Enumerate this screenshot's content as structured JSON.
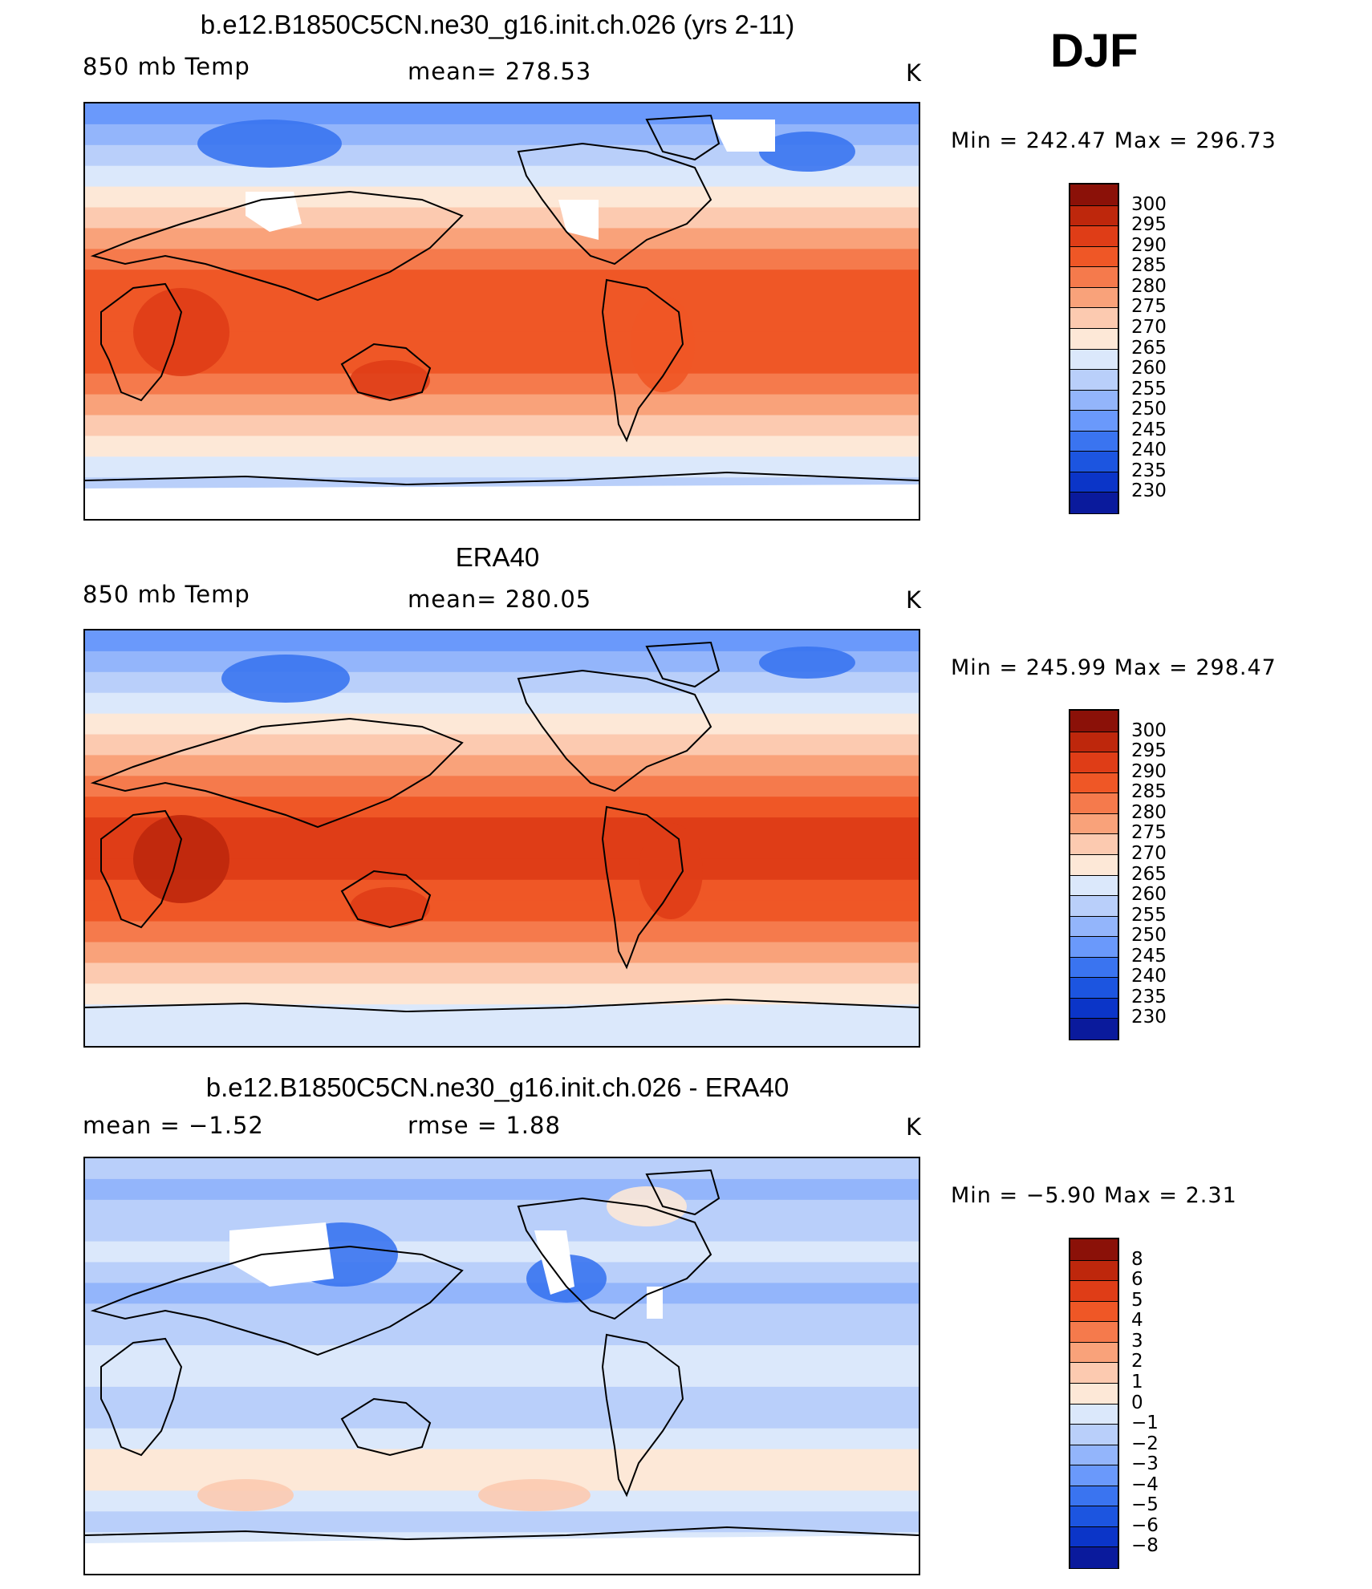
{
  "season": "DJF",
  "colors": {
    "abs": [
      "#08006b",
      "#0a1a9c",
      "#0b35c8",
      "#1c55e0",
      "#3a74f0",
      "#6a99fb",
      "#93b5fb",
      "#b9cffa",
      "#dbe8fb",
      "#fde8d7",
      "#fccab0",
      "#f9a27a",
      "#f57a4c",
      "#ef5726",
      "#df3d17",
      "#be270c",
      "#8b1108"
    ],
    "diff": [
      "#08006b",
      "#0a1a9c",
      "#0b35c8",
      "#1c55e0",
      "#3a74f0",
      "#6a99fb",
      "#93b5fb",
      "#b9cffa",
      "#dbe8fb",
      "#fde8d7",
      "#fccab0",
      "#f9a27a",
      "#f57a4c",
      "#ef5726",
      "#df3d17",
      "#be270c",
      "#8b1108"
    ],
    "missing": "#ffffff",
    "coast": "#000000"
  },
  "panels": [
    {
      "id": "model",
      "title": "b.e12.B1850C5CN.ne30_g16.init.ch.026 (yrs 2-11)",
      "left_label": "850 mb Temp",
      "center_label": "mean=  278.53",
      "units": "K",
      "minmax": "Min  =  242.47  Max  =  296.73"
    },
    {
      "id": "obs",
      "title": "ERA40",
      "left_label": "850 mb Temp",
      "center_label": "mean=  280.05",
      "units": "K",
      "minmax": "Min  =  245.99  Max  =  298.47"
    },
    {
      "id": "diff",
      "title": "b.e12.B1850C5CN.ne30_g16.init.ch.026 - ERA40",
      "left_label": "mean  =    −1.52",
      "center_label": "rmse  =     1.88",
      "units": "K",
      "minmax": "Min  =    −5.90  Max  =     2.31"
    }
  ],
  "chart_data": [
    {
      "type": "heatmap",
      "title": "b.e12.B1850C5CN.ne30_g16.init.ch.026 (yrs 2-11)",
      "variable": "850 mb Temp",
      "units": "K",
      "season": "DJF",
      "mean": 278.53,
      "min": 242.47,
      "max": 296.73,
      "colorbar_levels": [
        "300",
        "295",
        "290",
        "285",
        "280",
        "275",
        "270",
        "265",
        "260",
        "255",
        "250",
        "245",
        "240",
        "235",
        "230"
      ]
    },
    {
      "type": "heatmap",
      "title": "ERA40",
      "variable": "850 mb Temp",
      "units": "K",
      "season": "DJF",
      "mean": 280.05,
      "min": 245.99,
      "max": 298.47,
      "colorbar_levels": [
        "300",
        "295",
        "290",
        "285",
        "280",
        "275",
        "270",
        "265",
        "260",
        "255",
        "250",
        "245",
        "240",
        "235",
        "230"
      ]
    },
    {
      "type": "heatmap",
      "title": "b.e12.B1850C5CN.ne30_g16.init.ch.026 - ERA40",
      "units": "K",
      "season": "DJF",
      "mean": -1.52,
      "rmse": 1.88,
      "min": -5.9,
      "max": 2.31,
      "colorbar_levels": [
        "8",
        "6",
        "5",
        "4",
        "3",
        "2",
        "1",
        "0",
        "−1",
        "−2",
        "−3",
        "−4",
        "−5",
        "−6",
        "−8"
      ]
    }
  ]
}
